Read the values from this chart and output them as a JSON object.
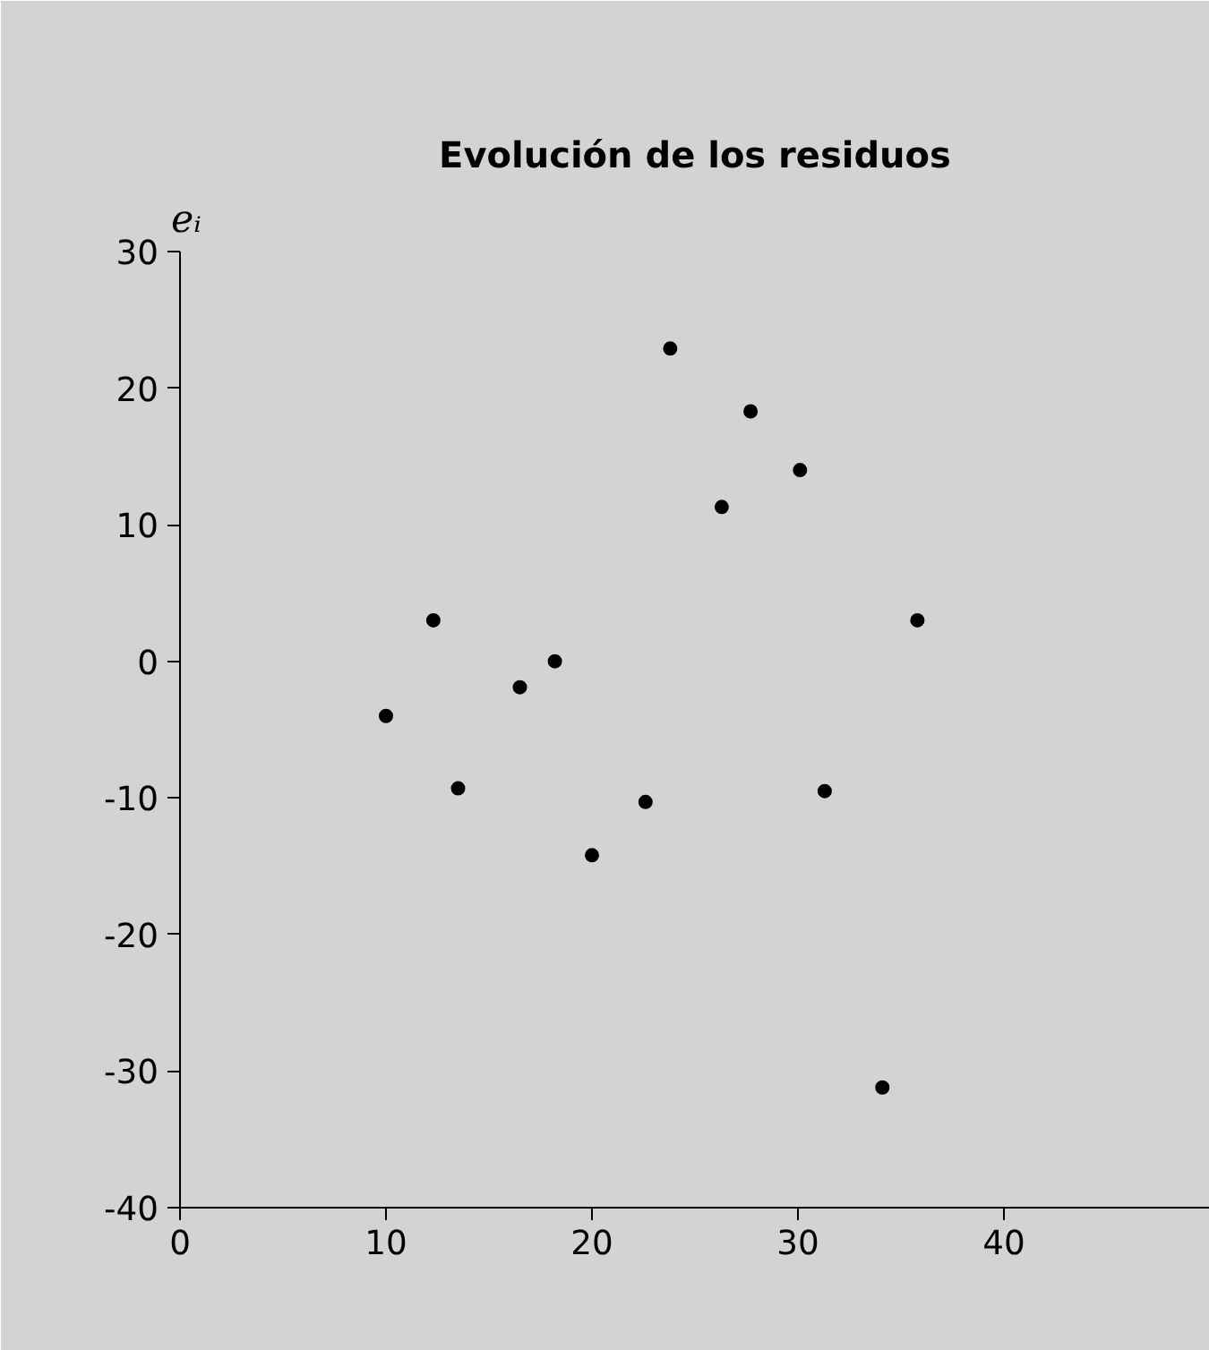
{
  "chart_data": {
    "type": "scatter",
    "title": "Evolución de los residuos",
    "ylabel": "eᵢ",
    "x": [
      10.0,
      12.3,
      13.5,
      16.5,
      18.2,
      20.0,
      22.6,
      23.8,
      26.3,
      27.7,
      30.1,
      31.3,
      34.1,
      35.8
    ],
    "series": [
      {
        "color": "#000000",
        "values": [
          -4.0,
          3.0,
          -9.3,
          -1.9,
          0,
          -14.2,
          -10.3,
          22.9,
          11.3,
          18.3,
          14.0,
          -9.5,
          -31.2,
          3.0
        ]
      }
    ],
    "xlim": [
      0,
      50
    ],
    "ylim": [
      -40,
      30
    ],
    "xticks": [
      0,
      10,
      20,
      30,
      40
    ],
    "yticks": [
      -40,
      -30,
      -20,
      -10,
      0,
      10,
      20,
      30
    ],
    "marker": "circle"
  }
}
